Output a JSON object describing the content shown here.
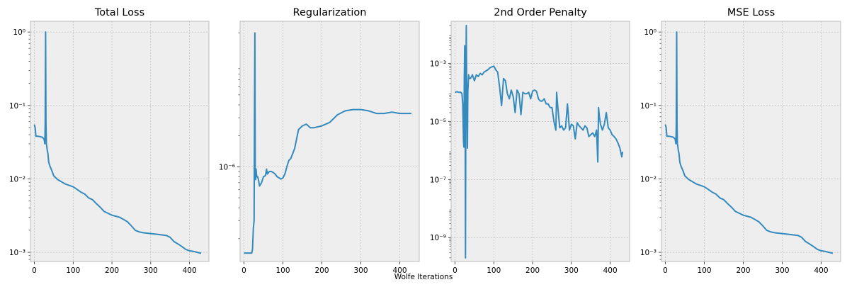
{
  "figure": {
    "xlabel": "Wolfe Iterations",
    "colors": {
      "line": "#348abd",
      "panel_bg": "#eeeeee",
      "grid": "#b2b2b2",
      "spine": "#bcbcbc"
    }
  },
  "chart_data": [
    {
      "type": "line",
      "title": "Total Loss",
      "yscale": "log",
      "grid": true,
      "xlim": [
        -10,
        450
      ],
      "ylim": [
        0.00075,
        1.4
      ],
      "xticks": [
        0,
        100,
        200,
        300,
        400
      ],
      "yticks": [
        0.001,
        0.01,
        0.1,
        1
      ],
      "ytick_labels": [
        "10⁻³",
        "10⁻²",
        "10⁻¹",
        "10⁰"
      ],
      "series": [
        {
          "x": [
            0,
            2,
            4,
            10,
            20,
            25,
            27,
            28,
            29,
            30,
            31,
            32,
            33,
            35,
            37,
            40,
            45,
            50,
            60,
            80,
            100,
            110,
            120,
            130,
            140,
            150,
            160,
            170,
            180,
            190,
            200,
            210,
            220,
            230,
            240,
            250,
            260,
            270,
            280,
            300,
            320,
            340,
            350,
            360,
            370,
            380,
            390,
            400,
            410,
            420,
            430
          ],
          "y": [
            0.055,
            0.05,
            0.038,
            0.038,
            0.037,
            0.035,
            0.03,
            0.055,
            1.0,
            0.06,
            0.03,
            0.028,
            0.025,
            0.022,
            0.017,
            0.015,
            0.013,
            0.011,
            0.0098,
            0.0085,
            0.0078,
            0.0072,
            0.0066,
            0.0062,
            0.0055,
            0.0052,
            0.0046,
            0.0041,
            0.0036,
            0.0034,
            0.0032,
            0.0031,
            0.003,
            0.0028,
            0.0026,
            0.0023,
            0.002,
            0.0019,
            0.00185,
            0.0018,
            0.00175,
            0.0017,
            0.0016,
            0.0014,
            0.0013,
            0.0012,
            0.0011,
            0.00105,
            0.00103,
            0.001,
            0.00097
          ]
        }
      ]
    },
    {
      "type": "line",
      "title": "Regularization",
      "yscale": "log",
      "grid": true,
      "xlim": [
        -10,
        450
      ],
      "ylim": [
        1.2e-07,
        2.6e-05
      ],
      "xticks": [
        0,
        100,
        200,
        300,
        400
      ],
      "yticks": [
        1e-06
      ],
      "ytick_labels": [
        "10⁻⁶"
      ],
      "series": [
        {
          "x": [
            0,
            10,
            20,
            22,
            24,
            26,
            27,
            28,
            29,
            30,
            31,
            32,
            33,
            35,
            37,
            40,
            45,
            50,
            55,
            58,
            60,
            65,
            70,
            75,
            80,
            85,
            90,
            95,
            100,
            105,
            110,
            115,
            120,
            130,
            140,
            150,
            160,
            170,
            180,
            200,
            220,
            240,
            260,
            280,
            300,
            320,
            340,
            360,
            380,
            400,
            420,
            430
          ],
          "y": [
            1.45e-07,
            1.45e-07,
            1.45e-07,
            1.6e-07,
            2.5e-07,
            3e-07,
            4e-06,
            2e-05,
            1e-06,
            7.5e-07,
            9.5e-07,
            8.5e-07,
            8e-07,
            8e-07,
            7.5e-07,
            6.5e-07,
            7e-07,
            8e-07,
            8.2e-07,
            9.5e-07,
            8.5e-07,
            9e-07,
            9e-07,
            8.8e-07,
            8.5e-07,
            8e-07,
            7.8e-07,
            7.6e-07,
            7.8e-07,
            8.5e-07,
            1e-06,
            1.15e-06,
            1.2e-06,
            1.5e-06,
            2.3e-06,
            2.5e-06,
            2.6e-06,
            2.4e-06,
            2.4e-06,
            2.5e-06,
            2.7e-06,
            3.2e-06,
            3.5e-06,
            3.6e-06,
            3.6e-06,
            3.5e-06,
            3.3e-06,
            3.3e-06,
            3.4e-06,
            3.3e-06,
            3.3e-06,
            3.3e-06
          ]
        }
      ]
    },
    {
      "type": "line",
      "title": "2nd Order Penalty",
      "yscale": "log",
      "grid": true,
      "xlim": [
        -10,
        450
      ],
      "ylim": [
        1.5e-10,
        0.028
      ],
      "xticks": [
        0,
        100,
        200,
        300,
        400
      ],
      "yticks": [
        1e-09,
        1e-07,
        1e-05,
        0.001
      ],
      "ytick_labels": [
        "10⁻⁹",
        "10⁻⁷",
        "10⁻⁵",
        "10⁻³"
      ],
      "series": [
        {
          "x": [
            0,
            5,
            10,
            15,
            18,
            20,
            22,
            23,
            24,
            25,
            26,
            27,
            28,
            29,
            30,
            31,
            32,
            33,
            35,
            37,
            40,
            45,
            50,
            55,
            60,
            65,
            70,
            75,
            80,
            85,
            90,
            95,
            100,
            105,
            110,
            115,
            120,
            125,
            130,
            135,
            140,
            145,
            150,
            155,
            160,
            165,
            170,
            175,
            180,
            185,
            190,
            195,
            200,
            205,
            210,
            215,
            220,
            225,
            230,
            235,
            240,
            245,
            250,
            255,
            260,
            262,
            265,
            270,
            275,
            280,
            285,
            290,
            295,
            300,
            305,
            310,
            315,
            320,
            325,
            330,
            335,
            340,
            345,
            350,
            355,
            360,
            365,
            368,
            370,
            372,
            375,
            380,
            385,
            390,
            395,
            400,
            405,
            410,
            415,
            420,
            425,
            430,
            432
          ],
          "y": [
            0.0001,
            0.000105,
            0.0001,
            0.0001,
            9e-05,
            4e-05,
            2e-06,
            1.3e-06,
            0.0003,
            0.004,
            0.0002,
            2e-10,
            0.0001,
            0.02,
            0.0003,
            3e-05,
            1.2e-06,
            0.0001,
            0.0004,
            0.0003,
            0.0003,
            0.0004,
            0.00025,
            0.0004,
            0.00035,
            0.00045,
            0.0004,
            0.0005,
            0.00055,
            0.0006,
            0.0007,
            0.00075,
            0.0008,
            0.0006,
            0.0005,
            0.00015,
            3.5e-05,
            0.0003,
            0.00025,
            9e-05,
            6e-05,
            0.00012,
            7e-05,
            2e-05,
            0.00012,
            9e-05,
            1.7e-05,
            0.0001,
            9e-05,
            9e-05,
            0.0001,
            6e-05,
            0.00011,
            0.00012,
            0.00011,
            6e-05,
            5e-05,
            5e-05,
            6e-05,
            4e-05,
            4e-05,
            3e-05,
            3e-05,
            1e-05,
            5e-06,
            0.0001,
            3e-05,
            6e-06,
            7e-06,
            5e-06,
            6e-06,
            4e-05,
            5e-06,
            8e-06,
            7e-06,
            2.5e-06,
            9e-06,
            7e-06,
            6e-06,
            5e-06,
            7e-06,
            6e-06,
            3e-06,
            3.5e-06,
            4e-06,
            3e-06,
            5e-06,
            4e-07,
            3e-05,
            1.5e-05,
            8e-06,
            5e-06,
            8e-06,
            2e-05,
            6e-06,
            5e-06,
            3.5e-06,
            3e-06,
            2.5e-06,
            1.8e-06,
            1.2e-06,
            6e-07,
            9e-07
          ]
        }
      ]
    },
    {
      "type": "line",
      "title": "MSE Loss",
      "yscale": "log",
      "grid": true,
      "xlim": [
        -10,
        450
      ],
      "ylim": [
        0.00075,
        1.4
      ],
      "xticks": [
        0,
        100,
        200,
        300,
        400
      ],
      "yticks": [
        0.001,
        0.01,
        0.1,
        1
      ],
      "ytick_labels": [
        "10⁻³",
        "10⁻²",
        "10⁻¹",
        "10⁰"
      ],
      "series": [
        {
          "x": [
            0,
            2,
            4,
            10,
            20,
            25,
            27,
            28,
            29,
            30,
            31,
            32,
            33,
            35,
            37,
            40,
            45,
            50,
            60,
            80,
            100,
            110,
            120,
            130,
            140,
            150,
            160,
            170,
            180,
            190,
            200,
            210,
            220,
            230,
            240,
            250,
            260,
            270,
            280,
            300,
            320,
            340,
            350,
            360,
            370,
            380,
            390,
            400,
            410,
            420,
            430
          ],
          "y": [
            0.055,
            0.05,
            0.038,
            0.038,
            0.037,
            0.035,
            0.03,
            0.055,
            1.0,
            0.06,
            0.03,
            0.028,
            0.025,
            0.022,
            0.017,
            0.015,
            0.013,
            0.011,
            0.0098,
            0.0085,
            0.0078,
            0.0072,
            0.0066,
            0.0062,
            0.0055,
            0.0052,
            0.0046,
            0.0041,
            0.0036,
            0.0034,
            0.0032,
            0.0031,
            0.003,
            0.0028,
            0.0026,
            0.0023,
            0.002,
            0.0019,
            0.00185,
            0.0018,
            0.00175,
            0.0017,
            0.0016,
            0.0014,
            0.0013,
            0.0012,
            0.0011,
            0.00105,
            0.00103,
            0.001,
            0.00097
          ]
        }
      ]
    }
  ]
}
